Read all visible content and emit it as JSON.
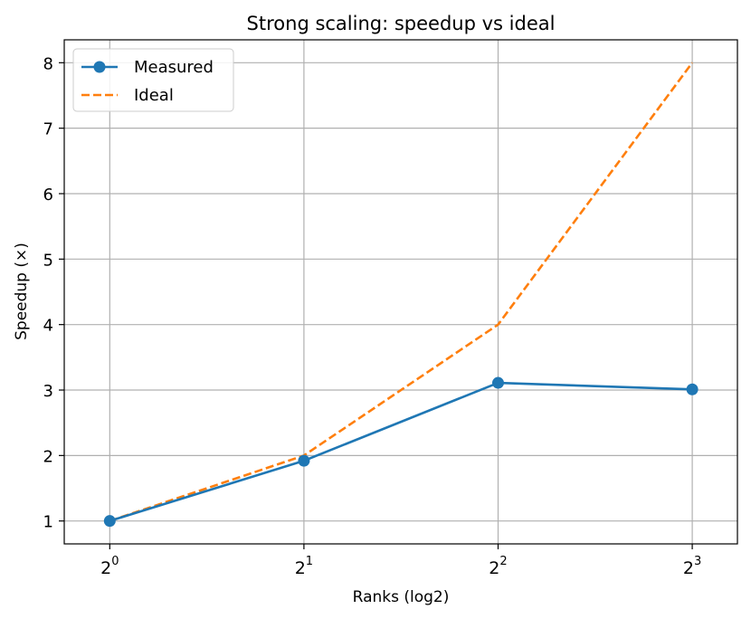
{
  "chart_data": {
    "type": "line",
    "title": "Strong scaling: speedup vs ideal",
    "xlabel": "Ranks (log2)",
    "ylabel": "Speedup (×)",
    "xscale": "log2",
    "x": [
      1,
      2,
      4,
      8
    ],
    "xticks": [
      {
        "value": 1,
        "base": "2",
        "exp": "0"
      },
      {
        "value": 2,
        "base": "2",
        "exp": "1"
      },
      {
        "value": 4,
        "base": "2",
        "exp": "2"
      },
      {
        "value": 8,
        "base": "2",
        "exp": "3"
      }
    ],
    "yticks": [
      1,
      2,
      3,
      4,
      5,
      6,
      7,
      8
    ],
    "xlim": [
      0.85,
      9.4
    ],
    "ylim": [
      0.65,
      8.35
    ],
    "grid": true,
    "legend": "top-left",
    "series": [
      {
        "name": "Measured",
        "values": [
          1.0,
          1.92,
          3.11,
          3.01
        ],
        "color": "#1f77b4",
        "style": "solid",
        "marker": "circle"
      },
      {
        "name": "Ideal",
        "values": [
          1,
          2,
          4,
          8
        ],
        "color": "#ff7f0e",
        "style": "dashed",
        "marker": "none"
      }
    ]
  }
}
